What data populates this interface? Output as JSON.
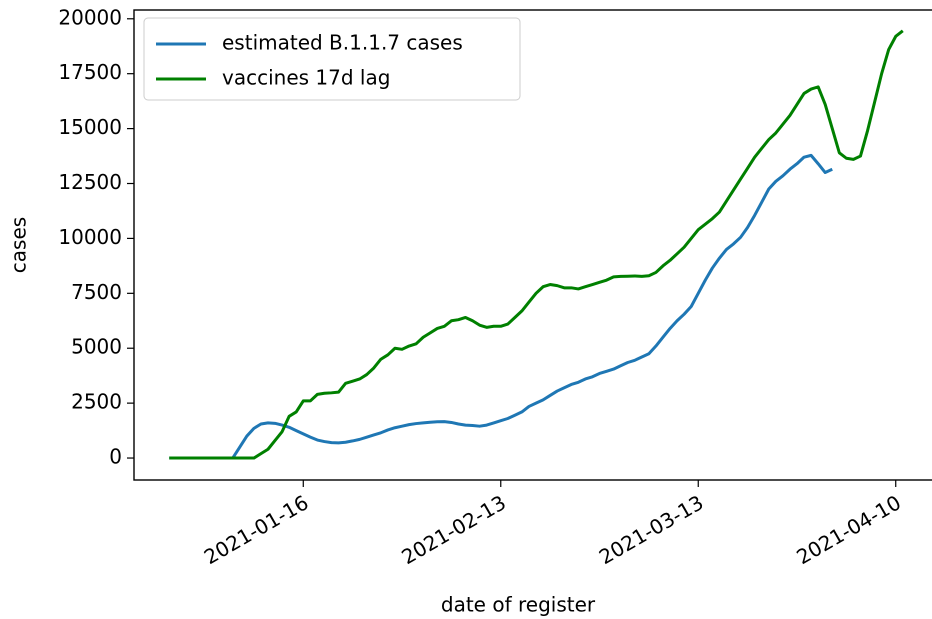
{
  "chart_data": {
    "type": "line",
    "x_label": "date of register",
    "y_label": "cases",
    "x": [
      "2020-12-28",
      "2020-12-29",
      "2020-12-30",
      "2020-12-31",
      "2021-01-01",
      "2021-01-02",
      "2021-01-03",
      "2021-01-04",
      "2021-01-05",
      "2021-01-06",
      "2021-01-07",
      "2021-01-08",
      "2021-01-09",
      "2021-01-10",
      "2021-01-11",
      "2021-01-12",
      "2021-01-13",
      "2021-01-14",
      "2021-01-15",
      "2021-01-16",
      "2021-01-17",
      "2021-01-18",
      "2021-01-19",
      "2021-01-20",
      "2021-01-21",
      "2021-01-22",
      "2021-01-23",
      "2021-01-24",
      "2021-01-25",
      "2021-01-26",
      "2021-01-27",
      "2021-01-28",
      "2021-01-29",
      "2021-01-30",
      "2021-01-31",
      "2021-02-01",
      "2021-02-02",
      "2021-02-03",
      "2021-02-04",
      "2021-02-05",
      "2021-02-06",
      "2021-02-07",
      "2021-02-08",
      "2021-02-09",
      "2021-02-10",
      "2021-02-11",
      "2021-02-12",
      "2021-02-13",
      "2021-02-14",
      "2021-02-15",
      "2021-02-16",
      "2021-02-17",
      "2021-02-18",
      "2021-02-19",
      "2021-02-20",
      "2021-02-21",
      "2021-02-22",
      "2021-02-23",
      "2021-02-24",
      "2021-02-25",
      "2021-02-26",
      "2021-02-27",
      "2021-02-28",
      "2021-03-01",
      "2021-03-02",
      "2021-03-03",
      "2021-03-04",
      "2021-03-05",
      "2021-03-06",
      "2021-03-07",
      "2021-03-08",
      "2021-03-09",
      "2021-03-10",
      "2021-03-11",
      "2021-03-12",
      "2021-03-13",
      "2021-03-14",
      "2021-03-15",
      "2021-03-16",
      "2021-03-17",
      "2021-03-18",
      "2021-03-19",
      "2021-03-20",
      "2021-03-21",
      "2021-03-22",
      "2021-03-23",
      "2021-03-24",
      "2021-03-25",
      "2021-03-26",
      "2021-03-27",
      "2021-03-28",
      "2021-03-29",
      "2021-03-30",
      "2021-03-31",
      "2021-04-01",
      "2021-04-02",
      "2021-04-03",
      "2021-04-04",
      "2021-04-05",
      "2021-04-06",
      "2021-04-07",
      "2021-04-08",
      "2021-04-09",
      "2021-04-10",
      "2021-04-11"
    ],
    "series": [
      {
        "name": "estimated B.1.1.7 cases",
        "color": "#1f77b4",
        "values": [
          0,
          0,
          0,
          0,
          0,
          0,
          0,
          0,
          0,
          0,
          500,
          1000,
          1350,
          1550,
          1600,
          1580,
          1500,
          1400,
          1250,
          1100,
          950,
          820,
          750,
          700,
          690,
          720,
          780,
          850,
          950,
          1050,
          1150,
          1280,
          1380,
          1450,
          1520,
          1570,
          1600,
          1630,
          1650,
          1660,
          1620,
          1550,
          1500,
          1480,
          1450,
          1500,
          1600,
          1700,
          1800,
          1950,
          2100,
          2350,
          2500,
          2650,
          2850,
          3050,
          3200,
          3350,
          3450,
          3600,
          3700,
          3850,
          3950,
          4050,
          4200,
          4350,
          4450,
          4600,
          4750,
          5100,
          5500,
          5900,
          6250,
          6550,
          6900,
          7500,
          8100,
          8650,
          9100,
          9500,
          9750,
          10050,
          10500,
          11050,
          11650,
          12250,
          12600,
          12850,
          13150,
          13400,
          13700,
          13780,
          13400,
          13000,
          13150,
          null,
          null,
          null,
          null,
          null,
          null,
          null,
          null,
          null,
          null
        ]
      },
      {
        "name": "vaccines 17d lag",
        "color": "#008000",
        "values": [
          0,
          0,
          0,
          0,
          0,
          0,
          0,
          0,
          0,
          0,
          0,
          0,
          0,
          200,
          400,
          800,
          1200,
          1900,
          2100,
          2600,
          2600,
          2900,
          2950,
          2970,
          3000,
          3400,
          3500,
          3600,
          3800,
          4100,
          4500,
          4700,
          5000,
          4950,
          5100,
          5200,
          5500,
          5700,
          5900,
          6000,
          6250,
          6300,
          6400,
          6250,
          6050,
          5950,
          6000,
          6000,
          6100,
          6400,
          6700,
          7100,
          7500,
          7800,
          7900,
          7850,
          7750,
          7750,
          7700,
          7800,
          7900,
          8000,
          8100,
          8250,
          8270,
          8280,
          8290,
          8270,
          8300,
          8450,
          8750,
          9000,
          9300,
          9600,
          10000,
          10400,
          10650,
          10900,
          11200,
          11700,
          12200,
          12700,
          13200,
          13700,
          14100,
          14500,
          14800,
          15200,
          15600,
          16100,
          16600,
          16800,
          16900,
          16100,
          15000,
          13900,
          13650,
          13600,
          13750,
          14900,
          16200,
          17500,
          18600,
          19200,
          19450
        ]
      }
    ],
    "xlim": [
      "2020-12-23",
      "2021-04-15"
    ],
    "xticks": [
      "2021-01-16",
      "2021-02-13",
      "2021-03-13",
      "2021-04-10"
    ],
    "ylim": [
      -1000,
      20400
    ],
    "yticks": [
      0,
      2500,
      5000,
      7500,
      10000,
      12500,
      15000,
      17500,
      20000
    ],
    "legend": "upper left"
  }
}
